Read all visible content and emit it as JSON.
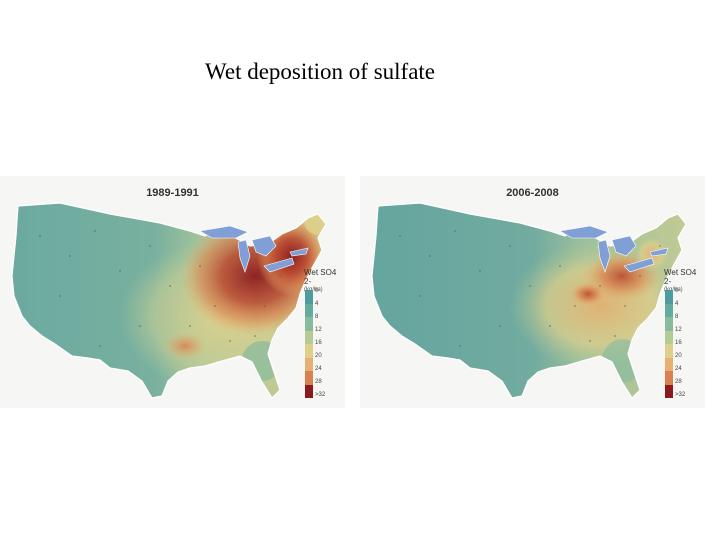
{
  "slide": {
    "title": "Wet deposition of sulfate"
  },
  "maps": [
    {
      "period": "1989-1991",
      "legend_title": "Wet SO4 2-",
      "legend_unit": "(kg/ha)"
    },
    {
      "period": "2006-2008",
      "legend_title": "Wet SO4 2-",
      "legend_unit": "(kg/ha)"
    }
  ],
  "legend": {
    "ticks": [
      "0",
      "4",
      "8",
      "12",
      "16",
      "20",
      "24",
      "28",
      ">32"
    ],
    "colors": [
      "#4f9c9e",
      "#63aa9f",
      "#86bb9e",
      "#b4cb96",
      "#e0cf8a",
      "#e7b070",
      "#d9824f",
      "#b8472f",
      "#8b1a1e"
    ]
  },
  "palette": {
    "land_west": "#6aa9a0",
    "lakes": "#7f9fd6",
    "coast": "#ffffff"
  }
}
